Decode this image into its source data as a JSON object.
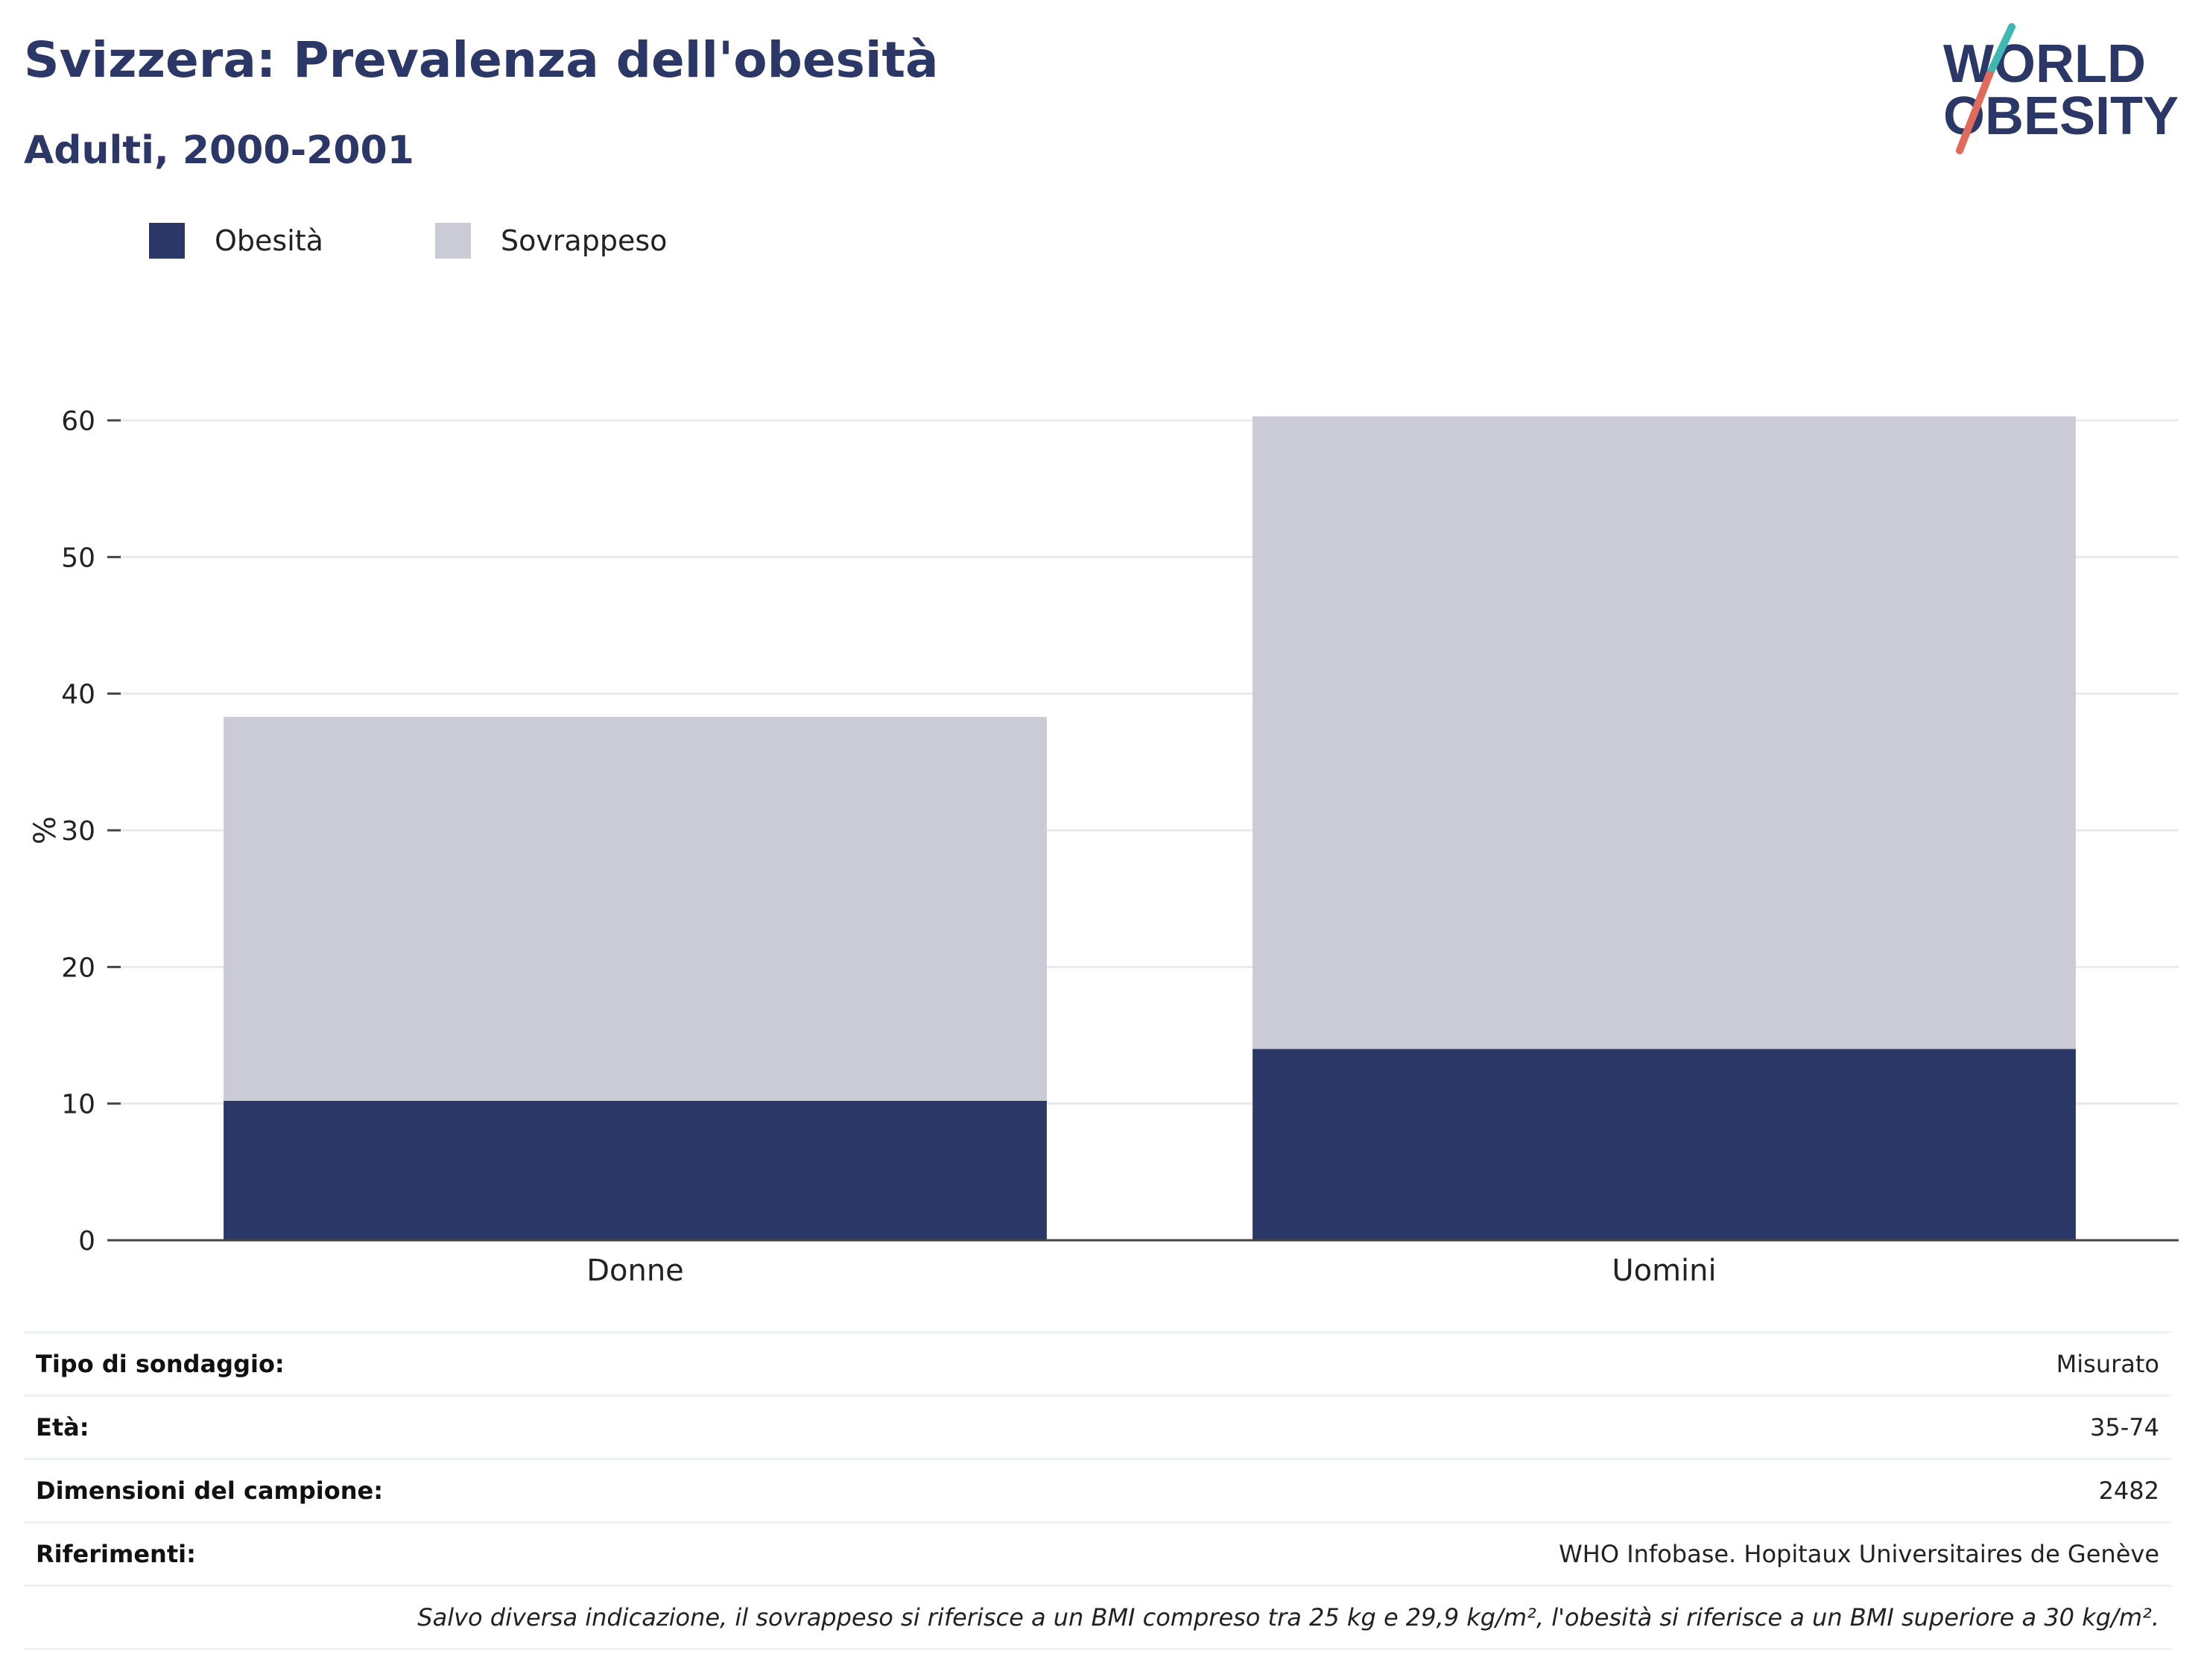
{
  "header": {
    "title": "Svizzera: Prevalenza dell'obesità",
    "subtitle": "Adulti, 2000-2001"
  },
  "logo": {
    "line1": "WORLD",
    "line2": "OBESITY"
  },
  "legend": [
    {
      "label": "Obesità",
      "color": "#2b3766"
    },
    {
      "label": "Sovrappeso",
      "color": "#cacbd7"
    }
  ],
  "chart_data": {
    "type": "bar",
    "stacked": true,
    "categories": [
      "Donne",
      "Uomini"
    ],
    "series": [
      {
        "name": "Obesità",
        "values": [
          10.2,
          14.0
        ],
        "color": "#2b3766"
      },
      {
        "name": "Sovrappeso",
        "values": [
          28.1,
          46.3
        ],
        "color": "#cacbd7"
      }
    ],
    "ylabel": "%",
    "ylim": [
      0,
      60
    ],
    "yticks": [
      0,
      10,
      20,
      30,
      40,
      50,
      60
    ],
    "grid": true,
    "legend_position": "top-left"
  },
  "info": {
    "rows": [
      {
        "key": "Tipo di sondaggio:",
        "value": "Misurato"
      },
      {
        "key": "Età:",
        "value": "35-74"
      },
      {
        "key": "Dimensioni del campione:",
        "value": "2482"
      },
      {
        "key": "Riferimenti:",
        "value": "WHO Infobase. Hopitaux Universitaires de Genève"
      }
    ],
    "note": "Salvo diversa indicazione, il sovrappeso si riferisce a un BMI compreso tra 25 kg e 29,9 kg/m², l'obesità si riferisce a un BMI superiore a 30 kg/m²."
  }
}
